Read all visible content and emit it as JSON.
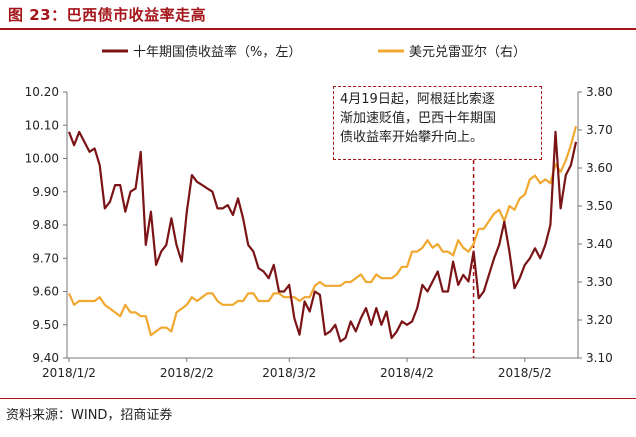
{
  "figure": {
    "title": "图 23：巴西债市收益率走高",
    "source": "资料来源：WIND，招商证券"
  },
  "colors": {
    "series1": "#7b1416",
    "series2": "#f0a830",
    "accent": "#a4151a"
  },
  "chart_data": {
    "type": "line",
    "title": "巴西债市收益率走高",
    "xlabel": "",
    "ylabel_left": "",
    "ylabel_right": "",
    "x_tick_labels": [
      "2018/1/2",
      "2018/2/2",
      "2018/3/2",
      "2018/4/2",
      "2018/5/2"
    ],
    "x_tick_index": [
      0,
      23,
      43,
      66,
      89
    ],
    "x_count": 100,
    "ylim_left": [
      9.4,
      10.2
    ],
    "yticks_left": [
      "10.20",
      "10.10",
      "10.00",
      "9.90",
      "9.80",
      "9.70",
      "9.60",
      "9.50",
      "9.40"
    ],
    "ylim_right": [
      3.1,
      3.8
    ],
    "yticks_right": [
      "3.80",
      "3.70",
      "3.60",
      "3.50",
      "3.40",
      "3.30",
      "3.20",
      "3.10"
    ],
    "series": [
      {
        "name": "十年期国债收益率（%，左）",
        "axis": "left",
        "values": [
          10.08,
          10.04,
          10.08,
          10.05,
          10.02,
          10.03,
          9.98,
          9.85,
          9.87,
          9.92,
          9.92,
          9.84,
          9.9,
          9.91,
          10.02,
          9.74,
          9.84,
          9.68,
          9.72,
          9.74,
          9.82,
          9.74,
          9.69,
          9.84,
          9.95,
          9.93,
          9.92,
          9.91,
          9.9,
          9.85,
          9.85,
          9.86,
          9.83,
          9.88,
          9.82,
          9.74,
          9.72,
          9.67,
          9.66,
          9.64,
          9.68,
          9.6,
          9.6,
          9.62,
          9.52,
          9.47,
          9.57,
          9.54,
          9.6,
          9.59,
          9.47,
          9.48,
          9.5,
          9.45,
          9.46,
          9.51,
          9.48,
          9.52,
          9.55,
          9.5,
          9.55,
          9.5,
          9.54,
          9.46,
          9.48,
          9.51,
          9.5,
          9.51,
          9.55,
          9.62,
          9.6,
          9.63,
          9.66,
          9.6,
          9.6,
          9.69,
          9.62,
          9.65,
          9.63,
          9.72,
          9.58,
          9.6,
          9.65,
          9.7,
          9.74,
          9.81,
          9.72,
          9.61,
          9.64,
          9.68,
          9.7,
          9.73,
          9.7,
          9.74,
          9.8,
          10.08,
          9.85,
          9.95,
          9.98,
          10.05
        ]
      },
      {
        "name": "美元兑雷亚尔（右）",
        "axis": "right",
        "values": [
          3.27,
          3.24,
          3.25,
          3.25,
          3.25,
          3.25,
          3.26,
          3.24,
          3.23,
          3.22,
          3.21,
          3.24,
          3.22,
          3.22,
          3.21,
          3.21,
          3.16,
          3.17,
          3.18,
          3.18,
          3.17,
          3.22,
          3.23,
          3.24,
          3.26,
          3.25,
          3.26,
          3.27,
          3.27,
          3.25,
          3.24,
          3.24,
          3.24,
          3.25,
          3.25,
          3.27,
          3.27,
          3.25,
          3.25,
          3.25,
          3.27,
          3.27,
          3.26,
          3.26,
          3.26,
          3.25,
          3.26,
          3.26,
          3.29,
          3.3,
          3.29,
          3.29,
          3.29,
          3.29,
          3.3,
          3.3,
          3.31,
          3.32,
          3.3,
          3.3,
          3.32,
          3.31,
          3.31,
          3.31,
          3.32,
          3.34,
          3.34,
          3.38,
          3.38,
          3.39,
          3.41,
          3.39,
          3.4,
          3.38,
          3.38,
          3.37,
          3.41,
          3.39,
          3.38,
          3.4,
          3.44,
          3.44,
          3.46,
          3.48,
          3.49,
          3.46,
          3.5,
          3.49,
          3.52,
          3.53,
          3.57,
          3.58,
          3.56,
          3.57,
          3.56,
          3.61,
          3.59,
          3.62,
          3.66,
          3.71
        ]
      }
    ],
    "annotation": {
      "text_lines": [
        "4月19日起，阿根廷比索逐",
        "渐加速贬值，巴西十年期国",
        "债收益率开始攀升向上。"
      ],
      "at_index": 79
    },
    "legend": {
      "placement": "top"
    }
  }
}
